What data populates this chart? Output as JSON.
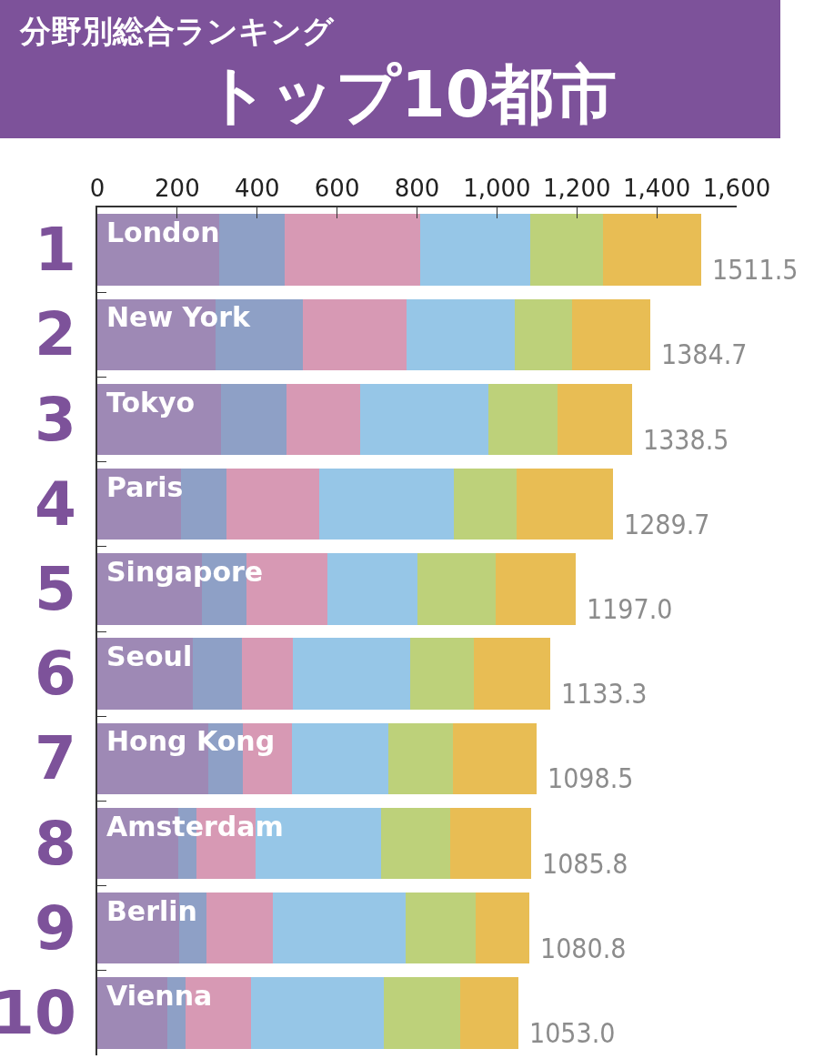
{
  "chart_data": {
    "type": "bar",
    "orientation": "horizontal",
    "stacked": true,
    "title": "分野別総合ランキング",
    "subtitle": "トップ10都市",
    "categories": [
      "London",
      "New York",
      "Tokyo",
      "Paris",
      "Singapore",
      "Seoul",
      "Hong Kong",
      "Amsterdam",
      "Berlin",
      "Vienna"
    ],
    "series": [
      {
        "color": "#9e89b5",
        "values": [
          305,
          297,
          309,
          210,
          261,
          238,
          277,
          203,
          205,
          175
        ]
      },
      {
        "color": "#8ea0c6",
        "values": [
          164,
          217,
          164,
          113,
          113,
          124,
          88,
          46,
          68,
          45
        ]
      },
      {
        "color": "#d799b4",
        "values": [
          339,
          259,
          184,
          233,
          201,
          127,
          123,
          148,
          167,
          164
        ]
      },
      {
        "color": "#96c6e7",
        "values": [
          275,
          272,
          322,
          337,
          225,
          295,
          240,
          312,
          332,
          332
        ]
      },
      {
        "color": "#bdd17a",
        "values": [
          183,
          142,
          172,
          156,
          197,
          159,
          161,
          173,
          174,
          191
        ]
      },
      {
        "color": "#e8bd54",
        "values": [
          245.5,
          197.7,
          187.5,
          240.7,
          200.0,
          190.3,
          209.5,
          203.8,
          134.8,
          146.0
        ]
      }
    ],
    "totals": [
      "1511.5",
      "1384.7",
      "1338.5",
      "1289.7",
      "1197.0",
      "1133.3",
      "1098.5",
      "1085.8",
      "1080.8",
      "1053.0"
    ],
    "annotations": [
      "1",
      "2",
      "3",
      "4",
      "5",
      "6",
      "7",
      "8",
      "9",
      "10"
    ],
    "xlim": [
      0,
      1600
    ],
    "xticks": [
      0,
      200,
      400,
      600,
      800,
      {
        "value": 1000,
        "label": "1,000"
      },
      {
        "value": 1200,
        "label": "1,200"
      },
      {
        "value": 1400,
        "label": "1,400"
      },
      {
        "value": 1600,
        "label": "1,600"
      }
    ],
    "tick_labels": "x"
  }
}
